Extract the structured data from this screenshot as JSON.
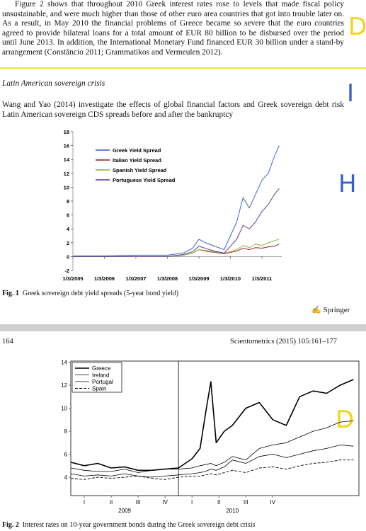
{
  "page_top": {
    "paragraph": "Figure 2 shows that throughout 2010 Greek interest rates rose to levels that made fiscal policy unsustainable, and were much higher than those of other euro area countries that got into trouble later on. As a result, in May 2010 the financial problems of Greece became so severe that the euro countries agreed to provide bilateral loans for a total amount of EUR 80 billion to be disbursed over the period until June 2013. In addition, the International Monetary Fund financed EUR 30 billion under a stand-by arrangement (Constâncio 2011; Grammatikos and Vermeulen 2012).",
    "heading": "Latin American sovereign crisis",
    "paragraph2": "Wang and Yao (2014) investigate the effects of global financial factors and Greek sovereign debt risk Latin American sovereign CDS spreads before and after the bankruptcy",
    "fig1_label": "Fig. 1",
    "fig1_caption": "Greek sovereign debt yield spreads (5-year bond yield)",
    "publisher": "Springer"
  },
  "page_next": {
    "page_number": "164",
    "journal": "Scientometrics (2015) 105:161–177",
    "fig2_label": "Fig. 2",
    "fig2_caption": "Interest rates on 10-year government bonds during the Greek sovereign debt crisis"
  },
  "annotations": [
    "D",
    "I",
    "H",
    "D"
  ],
  "chart_data": [
    {
      "type": "line",
      "x": [
        2005,
        2006,
        2007,
        2008,
        2008.5,
        2008.8,
        2009,
        2009.2,
        2009.5,
        2009.8,
        2010,
        2010.2,
        2010.4,
        2010.6,
        2010.8,
        2011,
        2011.2,
        2011.4,
        2011.55
      ],
      "xlim": [
        2005,
        2011.63
      ],
      "xticks": [
        {
          "value": 2005,
          "label": "1/3/2005"
        },
        {
          "value": 2006,
          "label": "1/3/2006"
        },
        {
          "value": 2007,
          "label": "1/3/2007"
        },
        {
          "value": 2008,
          "label": "1/3/2008"
        },
        {
          "value": 2009,
          "label": "1/3/2009"
        },
        {
          "value": 2010,
          "label": "1/3/2010"
        },
        {
          "value": 2011,
          "label": "1/3/2011"
        }
      ],
      "ylim": [
        -2,
        18
      ],
      "yticks": [
        -2,
        0,
        2,
        4,
        6,
        8,
        10,
        12,
        14,
        16,
        18
      ],
      "series": [
        {
          "name": "Greek Yield Spread",
          "color": "#4a74c4",
          "values": [
            0.1,
            0.1,
            0.2,
            0.2,
            0.5,
            1.2,
            2.5,
            2.0,
            1.5,
            1.0,
            3.0,
            5.0,
            8.5,
            7.0,
            9.0,
            11.0,
            12.0,
            14.5,
            16.0
          ]
        },
        {
          "name": "Italian Yield Spread",
          "color": "#a33a34",
          "values": [
            0,
            0,
            0,
            0,
            0.2,
            0.5,
            1.0,
            0.8,
            0.6,
            0.4,
            0.6,
            0.8,
            1.2,
            1.0,
            1.3,
            1.2,
            1.4,
            1.5,
            1.8
          ]
        },
        {
          "name": "Spanish Yield Spread",
          "color": "#9ab84a",
          "values": [
            0,
            0,
            0,
            0,
            0.2,
            0.5,
            1.0,
            0.9,
            0.7,
            0.5,
            0.7,
            1.0,
            1.6,
            1.3,
            1.8,
            1.6,
            2.0,
            2.3,
            2.5
          ]
        },
        {
          "name": "Portuguese Yield Spread",
          "color": "#6d4f9e",
          "values": [
            0,
            0,
            0,
            0,
            0.3,
            0.7,
            1.5,
            1.2,
            0.8,
            0.5,
            1.5,
            2.5,
            4.5,
            4.0,
            5.0,
            6.5,
            7.5,
            9.0,
            9.8
          ]
        }
      ]
    },
    {
      "type": "line",
      "x": [
        0,
        0.5,
        1,
        1.5,
        2,
        2.5,
        3,
        3.5,
        4,
        4.5,
        4.8,
        5,
        5.2,
        5.4,
        5.7,
        6,
        6.5,
        7,
        7.5,
        8,
        8.5,
        9,
        9.5,
        10,
        10.5
      ],
      "xlim": [
        0,
        10.7
      ],
      "xticks": [
        {
          "value": 0.5,
          "label": "I"
        },
        {
          "value": 1.5,
          "label": "II"
        },
        {
          "value": 2.5,
          "label": "III"
        },
        {
          "value": 3.5,
          "label": "IV"
        },
        {
          "value": 4.5,
          "label": "I"
        },
        {
          "value": 5.5,
          "label": "II"
        },
        {
          "value": 6.5,
          "label": "III"
        },
        {
          "value": 7.5,
          "label": "IV"
        }
      ],
      "xgroups": [
        {
          "value": 2,
          "label": "2009"
        },
        {
          "value": 6,
          "label": "2010"
        }
      ],
      "vlines": [
        4
      ],
      "ylim": [
        2.4,
        14.1
      ],
      "yticks": [
        4,
        6,
        8,
        10,
        12,
        14
      ],
      "series": [
        {
          "name": "Greece",
          "color": "#000000",
          "line_style": "thick",
          "values": [
            5.3,
            5.0,
            5.2,
            4.8,
            4.9,
            4.6,
            4.6,
            4.7,
            4.8,
            5.6,
            6.5,
            9.5,
            12.3,
            7.0,
            8.0,
            8.5,
            10.0,
            10.5,
            9.0,
            8.5,
            11.0,
            11.5,
            11.3,
            12.0,
            12.5
          ]
        },
        {
          "name": "Ireland",
          "color": "#000000",
          "line_style": "thin",
          "values": [
            4.8,
            4.6,
            4.5,
            4.5,
            4.7,
            4.4,
            4.6,
            4.7,
            4.7,
            4.8,
            5.0,
            5.1,
            5.2,
            5.0,
            5.3,
            5.8,
            5.5,
            6.5,
            6.8,
            7.0,
            7.5,
            8.0,
            8.3,
            8.8,
            8.9
          ]
        },
        {
          "name": "Portugal",
          "color": "#000000",
          "line_style": "thin",
          "values": [
            4.3,
            4.1,
            4.2,
            4.1,
            4.3,
            4.1,
            4.0,
            4.1,
            4.2,
            4.3,
            4.4,
            4.5,
            4.7,
            4.6,
            4.9,
            5.5,
            5.2,
            5.8,
            6.0,
            5.7,
            6.0,
            6.3,
            6.5,
            6.8,
            6.7
          ]
        },
        {
          "name": "Spain",
          "color": "#000000",
          "line_style": "dashed",
          "values": [
            3.9,
            3.8,
            4.0,
            3.9,
            4.0,
            4.1,
            3.9,
            3.8,
            4.0,
            4.1,
            4.1,
            4.2,
            4.3,
            4.2,
            4.4,
            4.6,
            4.4,
            4.8,
            4.9,
            4.7,
            5.0,
            5.2,
            5.3,
            5.5,
            5.5
          ]
        }
      ]
    }
  ]
}
